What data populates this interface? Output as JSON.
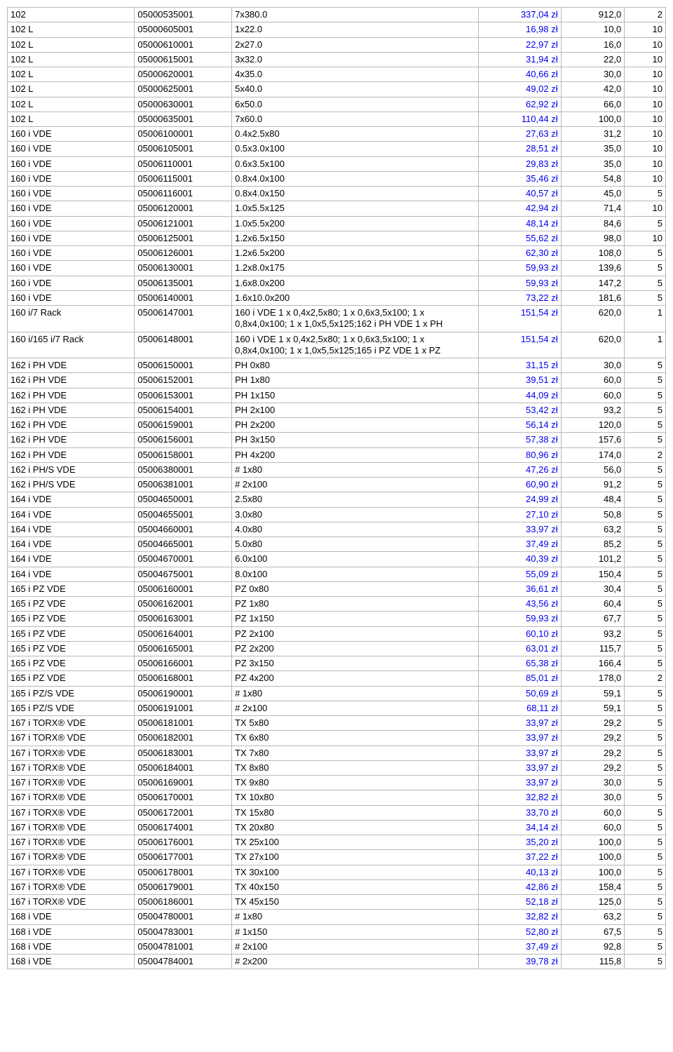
{
  "columns": [
    "c0",
    "c1",
    "c2",
    "c3",
    "c4",
    "c5"
  ],
  "rows": [
    [
      "102",
      "05000535001",
      "7x380.0",
      "337,04 zł",
      "912,0",
      "2"
    ],
    [
      "102 L",
      "05000605001",
      "1x22.0",
      "16,98 zł",
      "10,0",
      "10"
    ],
    [
      "102 L",
      "05000610001",
      "2x27.0",
      "22,97 zł",
      "16,0",
      "10"
    ],
    [
      "102 L",
      "05000615001",
      "3x32.0",
      "31,94 zł",
      "22,0",
      "10"
    ],
    [
      "102 L",
      "05000620001",
      "4x35.0",
      "40,66 zł",
      "30,0",
      "10"
    ],
    [
      "102 L",
      "05000625001",
      "5x40.0",
      "49,02 zł",
      "42,0",
      "10"
    ],
    [
      "102 L",
      "05000630001",
      "6x50.0",
      "62,92 zł",
      "66,0",
      "10"
    ],
    [
      "102 L",
      "05000635001",
      "7x60.0",
      "110,44 zł",
      "100,0",
      "10"
    ],
    [
      "160 i VDE",
      "05006100001",
      "0.4x2.5x80",
      "27,63 zł",
      "31,2",
      "10"
    ],
    [
      "160 i VDE",
      "05006105001",
      "0.5x3.0x100",
      "28,51 zł",
      "35,0",
      "10"
    ],
    [
      "160 i VDE",
      "05006110001",
      "0.6x3.5x100",
      "29,83 zł",
      "35,0",
      "10"
    ],
    [
      "160 i VDE",
      "05006115001",
      "0.8x4.0x100",
      "35,46 zł",
      "54,8",
      "10"
    ],
    [
      "160 i VDE",
      "05006116001",
      "0.8x4.0x150",
      "40,57 zł",
      "45,0",
      "5"
    ],
    [
      "160 i VDE",
      "05006120001",
      "1.0x5.5x125",
      "42,94 zł",
      "71,4",
      "10"
    ],
    [
      "160 i VDE",
      "05006121001",
      "1.0x5.5x200",
      "48,14 zł",
      "84,6",
      "5"
    ],
    [
      "160 i VDE",
      "05006125001",
      "1.2x6.5x150",
      "55,62 zł",
      "98,0",
      "10"
    ],
    [
      "160 i VDE",
      "05006126001",
      "1.2x6.5x200",
      "62,30 zł",
      "108,0",
      "5"
    ],
    [
      "160 i VDE",
      "05006130001",
      "1.2x8.0x175",
      "59,93 zł",
      "139,6",
      "5"
    ],
    [
      "160 i VDE",
      "05006135001",
      "1.6x8.0x200",
      "59,93 zł",
      "147,2",
      "5"
    ],
    [
      "160 i VDE",
      "05006140001",
      "1.6x10.0x200",
      "73,22 zł",
      "181,6",
      "5"
    ],
    [
      "160 i/7 Rack",
      "05006147001",
      "160 i VDE 1 x 0,4x2,5x80; 1 x 0,6x3,5x100; 1 x 0,8x4,0x100; 1 x 1,0x5,5x125;162 i PH VDE 1 x PH",
      "151,54 zł",
      "620,0",
      "1"
    ],
    [
      "160 i/165 i/7 Rack",
      "05006148001",
      "160 i VDE 1 x 0,4x2,5x80; 1 x 0,6x3,5x100; 1 x 0,8x4,0x100; 1 x 1,0x5,5x125;165 i PZ VDE 1 x PZ",
      "151,54 zł",
      "620,0",
      "1"
    ],
    [
      "162 i PH VDE",
      "05006150001",
      "PH 0x80",
      "31,15 zł",
      "30,0",
      "5"
    ],
    [
      "162 i PH VDE",
      "05006152001",
      "PH 1x80",
      "39,51 zł",
      "60,0",
      "5"
    ],
    [
      "162 i PH VDE",
      "05006153001",
      "PH 1x150",
      "44,09 zł",
      "60,0",
      "5"
    ],
    [
      "162 i PH VDE",
      "05006154001",
      "PH 2x100",
      "53,42 zł",
      "93,2",
      "5"
    ],
    [
      "162 i PH VDE",
      "05006159001",
      "PH 2x200",
      "56,14 zł",
      "120,0",
      "5"
    ],
    [
      "162 i PH VDE",
      "05006156001",
      "PH 3x150",
      "57,38 zł",
      "157,6",
      "5"
    ],
    [
      "162 i PH VDE",
      "05006158001",
      "PH 4x200",
      "80,96 zł",
      "174,0",
      "2"
    ],
    [
      "162 i PH/S VDE",
      "05006380001",
      "# 1x80",
      "47,26 zł",
      "56,0",
      "5"
    ],
    [
      "162 i PH/S VDE",
      "05006381001",
      "# 2x100",
      "60,90 zł",
      "91,2",
      "5"
    ],
    [
      "164 i VDE",
      "05004650001",
      "2.5x80",
      "24,99 zł",
      "48,4",
      "5"
    ],
    [
      "164 i VDE",
      "05004655001",
      "3.0x80",
      "27,10 zł",
      "50,8",
      "5"
    ],
    [
      "164 i VDE",
      "05004660001",
      "4.0x80",
      "33,97 zł",
      "63,2",
      "5"
    ],
    [
      "164 i VDE",
      "05004665001",
      "5.0x80",
      "37,49 zł",
      "85,2",
      "5"
    ],
    [
      "164 i VDE",
      "05004670001",
      "6.0x100",
      "40,39 zł",
      "101,2",
      "5"
    ],
    [
      "164 i VDE",
      "05004675001",
      "8.0x100",
      "55,09 zł",
      "150,4",
      "5"
    ],
    [
      "165 i PZ VDE",
      "05006160001",
      "PZ 0x80",
      "36,61 zł",
      "30,4",
      "5"
    ],
    [
      "165 i PZ VDE",
      "05006162001",
      "PZ 1x80",
      "43,56 zł",
      "60,4",
      "5"
    ],
    [
      "165 i PZ VDE",
      "05006163001",
      "PZ 1x150",
      "59,93 zł",
      "67,7",
      "5"
    ],
    [
      "165 i PZ VDE",
      "05006164001",
      "PZ 2x100",
      "60,10 zł",
      "93,2",
      "5"
    ],
    [
      "165 i PZ VDE",
      "05006165001",
      "PZ 2x200",
      "63,01 zł",
      "115,7",
      "5"
    ],
    [
      "165 i PZ VDE",
      "05006166001",
      "PZ 3x150",
      "65,38 zł",
      "166,4",
      "5"
    ],
    [
      "165 i PZ VDE",
      "05006168001",
      "PZ 4x200",
      "85,01 zł",
      "178,0",
      "2"
    ],
    [
      "165 i PZ/S VDE",
      "05006190001",
      "# 1x80",
      "50,69 zł",
      "59,1",
      "5"
    ],
    [
      "165 i PZ/S VDE",
      "05006191001",
      "# 2x100",
      "68,11 zł",
      "59,1",
      "5"
    ],
    [
      "167 i TORX® VDE",
      "05006181001",
      "TX 5x80",
      "33,97 zł",
      "29,2",
      "5"
    ],
    [
      "167 i TORX® VDE",
      "05006182001",
      "TX 6x80",
      "33,97 zł",
      "29,2",
      "5"
    ],
    [
      "167 i TORX® VDE",
      "05006183001",
      "TX 7x80",
      "33,97 zł",
      "29,2",
      "5"
    ],
    [
      "167 i TORX® VDE",
      "05006184001",
      "TX 8x80",
      "33,97 zł",
      "29,2",
      "5"
    ],
    [
      "167 i TORX® VDE",
      "05006169001",
      "TX 9x80",
      "33,97 zł",
      "30,0",
      "5"
    ],
    [
      "167 i TORX® VDE",
      "05006170001",
      "TX 10x80",
      "32,82 zł",
      "30,0",
      "5"
    ],
    [
      "167 i TORX® VDE",
      "05006172001",
      "TX 15x80",
      "33,70 zł",
      "60,0",
      "5"
    ],
    [
      "167 i TORX® VDE",
      "05006174001",
      "TX 20x80",
      "34,14 zł",
      "60,0",
      "5"
    ],
    [
      "167 i TORX® VDE",
      "05006176001",
      "TX 25x100",
      "35,20 zł",
      "100,0",
      "5"
    ],
    [
      "167 i TORX® VDE",
      "05006177001",
      "TX 27x100",
      "37,22 zł",
      "100,0",
      "5"
    ],
    [
      "167 i TORX® VDE",
      "05006178001",
      "TX 30x100",
      "40,13 zł",
      "100,0",
      "5"
    ],
    [
      "167 i TORX® VDE",
      "05006179001",
      "TX 40x150",
      "42,86 zł",
      "158,4",
      "5"
    ],
    [
      "167 i TORX® VDE",
      "05006186001",
      "TX 45x150",
      "52,18 zł",
      "125,0",
      "5"
    ],
    [
      "168 i VDE",
      "05004780001",
      "# 1x80",
      "32,82 zł",
      "63,2",
      "5"
    ],
    [
      "168 i VDE",
      "05004783001",
      "# 1x150",
      "52,80 zł",
      "67,5",
      "5"
    ],
    [
      "168 i VDE",
      "05004781001",
      "# 2x100",
      "37,49 zł",
      "92,8",
      "5"
    ],
    [
      "168 i VDE",
      "05004784001",
      "# 2x200",
      "39,78 zł",
      "115,8",
      "5"
    ]
  ]
}
